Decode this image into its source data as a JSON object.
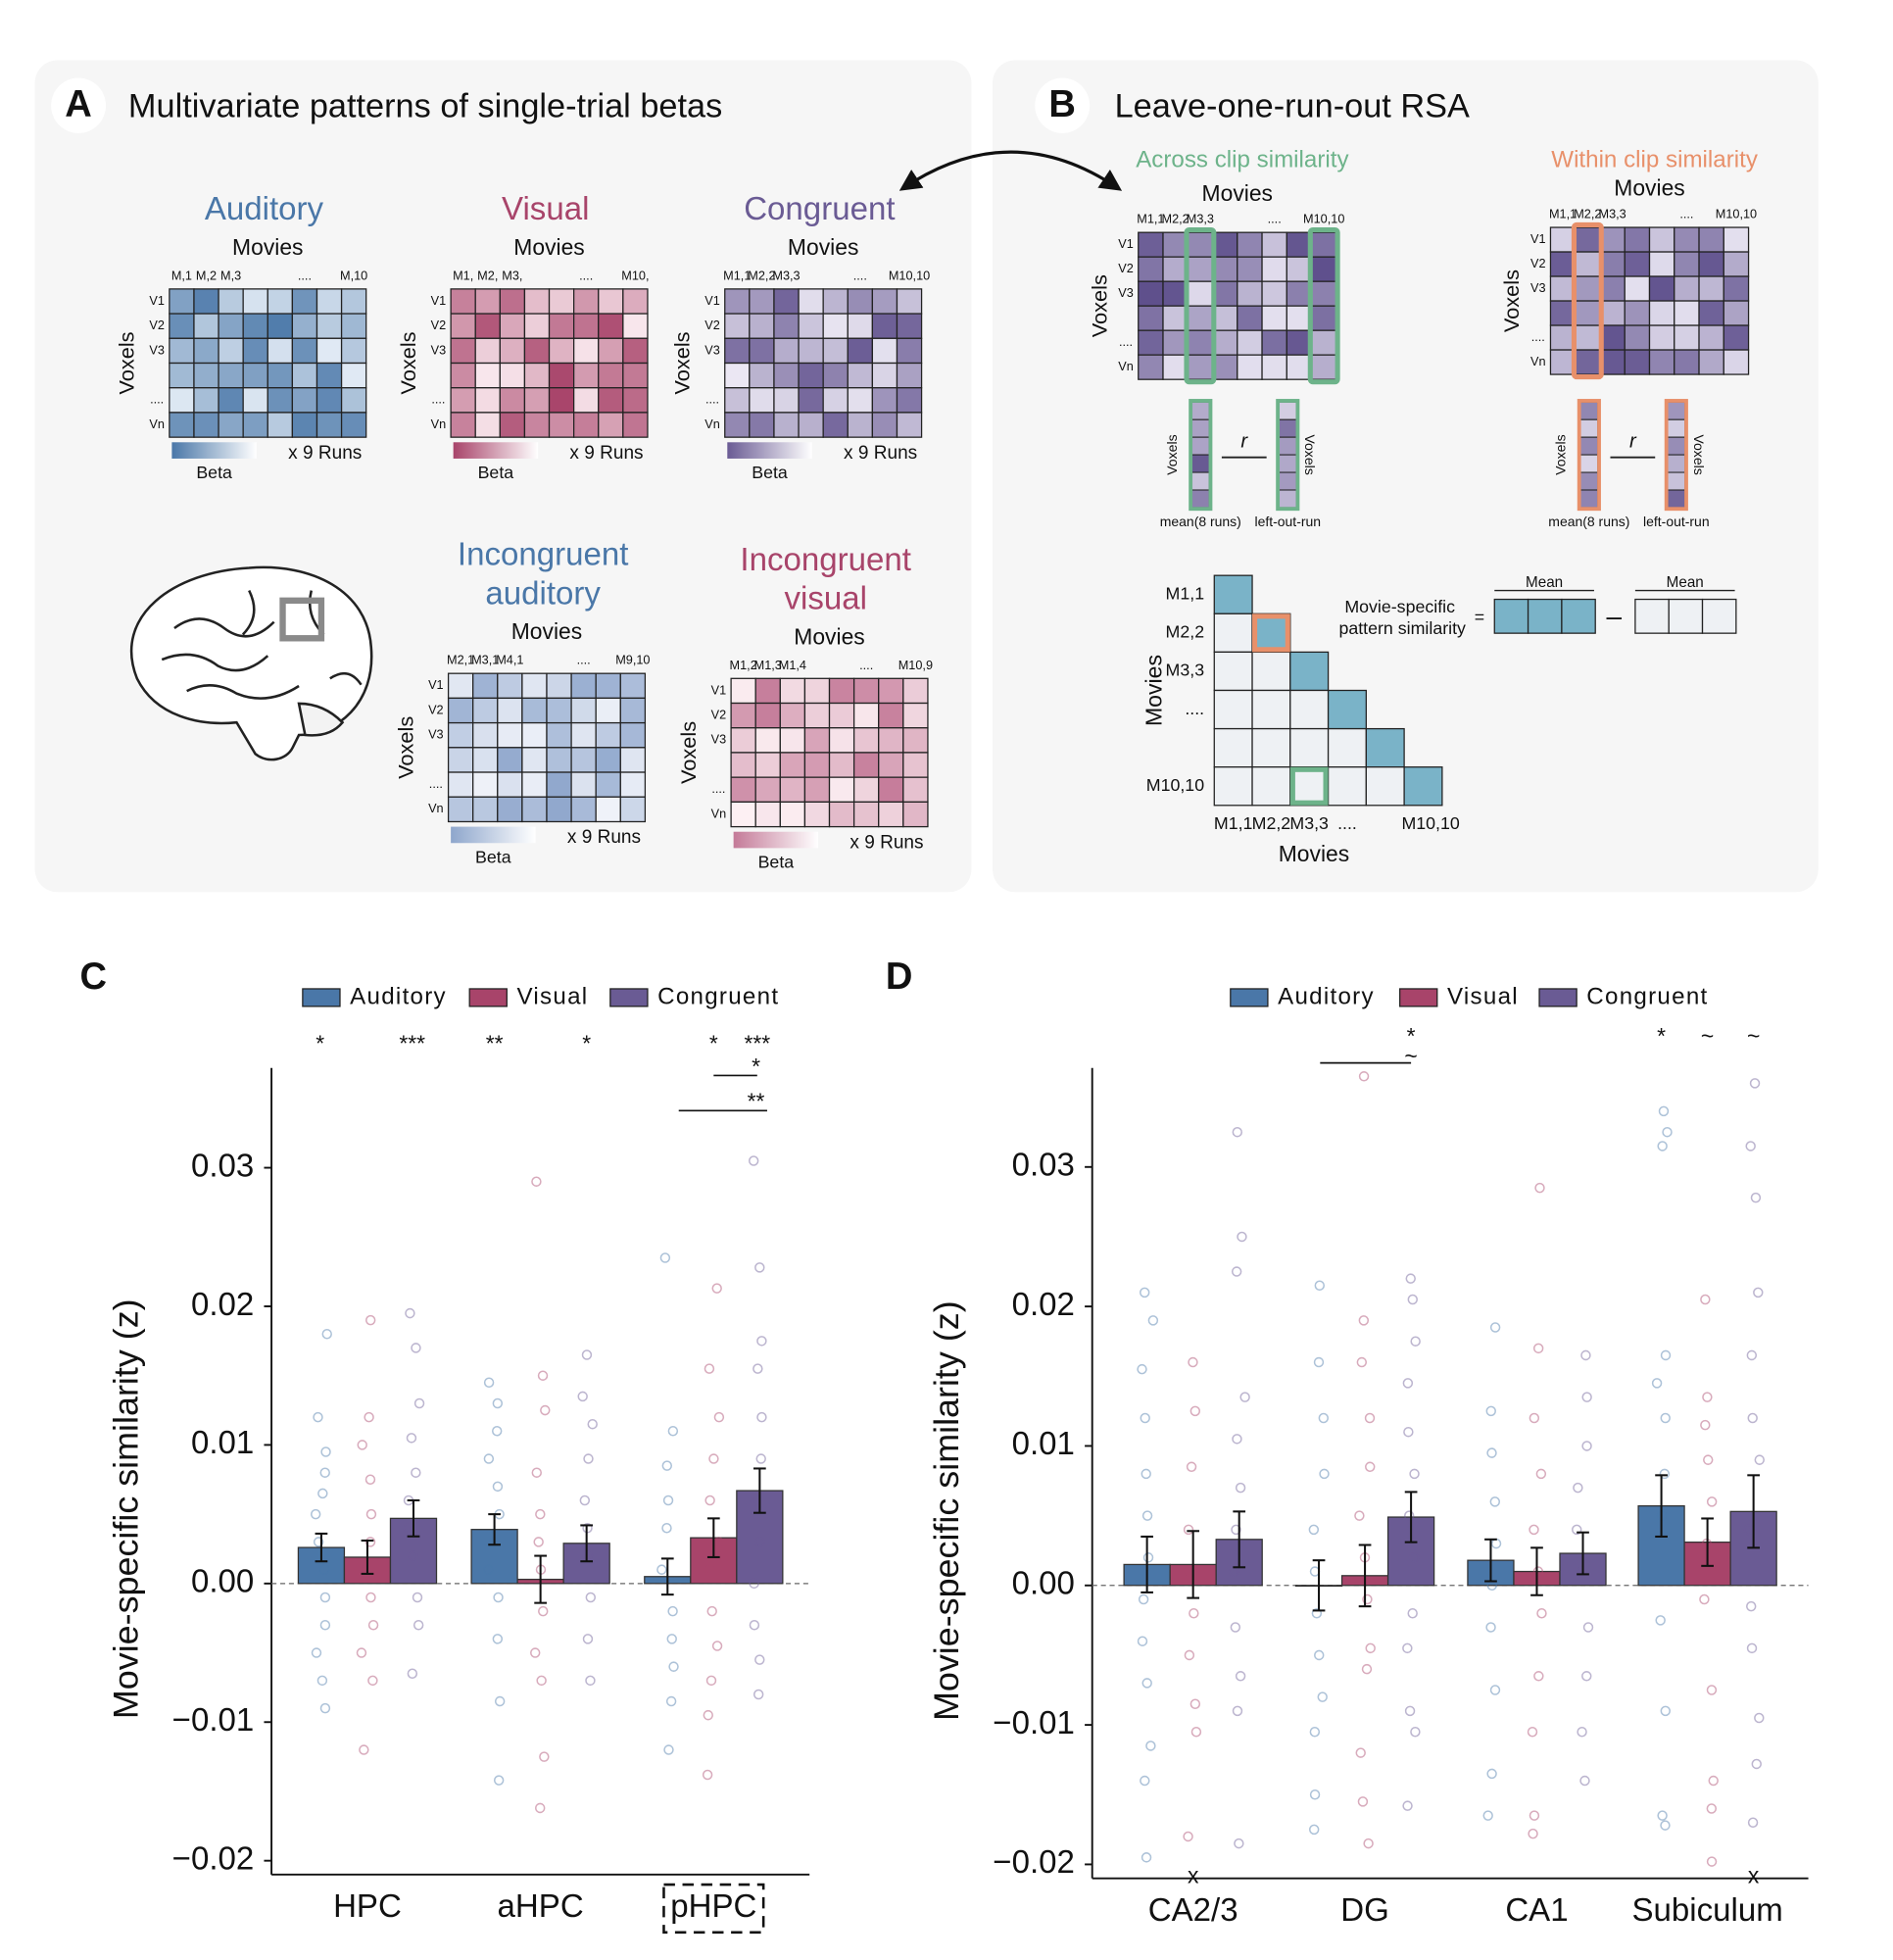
{
  "labels": {
    "movies": "Movies",
    "voxels": "Voxels",
    "runs": "x 9 Runs",
    "beta": "Beta"
  },
  "panel_a": {
    "letter": "A",
    "title": "Multivariate patterns of single-trial betas",
    "rows": [
      "V1",
      "V2",
      "V3",
      "....",
      "Vn"
    ],
    "matrices": [
      {
        "title": [
          "Auditory"
        ],
        "columns": [
          "M,1",
          "M,2",
          "M,3",
          "....",
          "M,10"
        ]
      },
      {
        "title": [
          "Visual"
        ],
        "columns": [
          "M1,",
          "M2,",
          "M3,",
          "....",
          "M10,"
        ]
      },
      {
        "title": [
          "Congruent"
        ],
        "columns": [
          "M1,1",
          "M2,2",
          "M3,3",
          "....",
          "M10,10"
        ]
      },
      {
        "title": [
          "Incongruent",
          "auditory"
        ],
        "columns": [
          "M2,1",
          "M3,1",
          "M4,1",
          "....",
          "M9,10"
        ]
      },
      {
        "title": [
          "Incongruent",
          "visual"
        ],
        "columns": [
          "M1,2",
          "M1,3",
          "M1,4",
          "....",
          "M10,9"
        ]
      }
    ]
  },
  "panel_b": {
    "letter": "B",
    "title": "Leave-one-run-out RSA",
    "across": "Across clip similarity",
    "within": "Within clip similarity",
    "rows": [
      "V1",
      "V2",
      "V3",
      "....",
      "Vn"
    ],
    "columns_across": [
      "M1,1",
      "M2,2",
      "M3,3",
      "....",
      "M10,10"
    ],
    "columns_within": [
      "M1,1",
      "M2,2",
      "M3,3",
      "....",
      "M10,10"
    ],
    "vector_labels": [
      "mean(8 runs)",
      "left-out-run"
    ],
    "r": "r",
    "rsa_labels": [
      "M1,1",
      "M2,2",
      "M3,3",
      "....",
      "M10,10"
    ],
    "formula": [
      "Movie-specific",
      "pattern similarity"
    ],
    "equals": "=",
    "mean": "Mean",
    "minus": "–"
  },
  "chart_data": [
    {
      "type": "bar",
      "letter": "C",
      "ylabel": "Movie-specific similarity (z)",
      "categories": [
        "HPC",
        "aHPC",
        "pHPC"
      ],
      "ylim": [
        -0.021,
        0.0372
      ],
      "yticks": [
        {
          "value": -0.02,
          "label": "−0.02"
        },
        {
          "value": -0.01,
          "label": "−0.01"
        },
        {
          "value": 0,
          "label": "0.00"
        },
        0.01,
        0.02,
        0.03
      ],
      "annotations": [
        "*",
        "***",
        "**",
        "*",
        "*",
        "***",
        "*",
        "**"
      ],
      "series": [
        {
          "name": "Auditory",
          "color": "#4a77a8",
          "values": [
            0.0026,
            0.0039,
            0.0005
          ],
          "errors": [
            0.001,
            0.0011,
            0.0013
          ],
          "points": [
            [
              0.018,
              0.012,
              0.0095,
              0.008,
              0.0065,
              0.005,
              0.003,
              0.001,
              -0.001,
              -0.003,
              -0.005,
              -0.007,
              -0.009
            ],
            [
              0.0145,
              0.013,
              0.011,
              0.009,
              0.007,
              0.005,
              0.003,
              0.001,
              -0.001,
              -0.004,
              -0.0085,
              -0.0142
            ],
            [
              0.0235,
              0.011,
              0.0085,
              0.006,
              0.004,
              0.001,
              -0.002,
              -0.004,
              -0.006,
              -0.0085,
              -0.012
            ]
          ]
        },
        {
          "name": "Visual",
          "color": "#a8446a",
          "values": [
            0.0019,
            0.0003,
            0.0033
          ],
          "errors": [
            0.0012,
            0.0017,
            0.0014
          ],
          "points": [
            [
              0.019,
              0.012,
              0.01,
              0.0075,
              0.005,
              0.003,
              0.001,
              -0.001,
              -0.003,
              -0.005,
              -0.007,
              -0.012
            ],
            [
              0.029,
              0.015,
              0.0125,
              0.008,
              0.005,
              0.003,
              0.001,
              -0.002,
              -0.005,
              -0.007,
              -0.0125,
              -0.0162
            ],
            [
              0.0213,
              0.0155,
              0.012,
              0.009,
              0.006,
              0.003,
              0.001,
              -0.002,
              -0.0045,
              -0.007,
              -0.0095,
              -0.0138
            ]
          ]
        },
        {
          "name": "Congruent",
          "color": "#6a5b94",
          "values": [
            0.0047,
            0.0029,
            0.0067
          ],
          "errors": [
            0.0013,
            0.0013,
            0.0016
          ],
          "points": [
            [
              0.0195,
              0.017,
              0.013,
              0.0105,
              0.008,
              0.006,
              0.004,
              0.002,
              -0.001,
              -0.003,
              -0.0065
            ],
            [
              0.0165,
              0.0135,
              0.0115,
              0.009,
              0.006,
              0.004,
              0.002,
              -0.001,
              -0.004,
              -0.007
            ],
            [
              0.0305,
              0.0228,
              0.0175,
              0.0155,
              0.012,
              0.009,
              0.006,
              0.003,
              0.0,
              -0.003,
              -0.0055,
              -0.008
            ]
          ]
        }
      ]
    },
    {
      "type": "bar",
      "letter": "D",
      "ylabel": "Movie-specific similarity (z)",
      "categories": [
        "CA2/3",
        "DG",
        "CA1",
        "Subiculum"
      ],
      "ylim": [
        -0.021,
        0.0371
      ],
      "yticks": [
        {
          "value": -0.02,
          "label": "−0.02"
        },
        {
          "value": -0.01,
          "label": "−0.01"
        },
        {
          "value": 0,
          "label": "0.00"
        },
        0.01,
        0.02,
        0.03
      ],
      "annotations": [
        "*",
        "~",
        "*",
        "~",
        "~",
        "x",
        "x"
      ],
      "series": [
        {
          "name": "Auditory",
          "color": "#4a77a8",
          "values": [
            0.0015,
            0.0,
            0.0018,
            0.0057
          ],
          "errors": [
            0.002,
            0.0018,
            0.0015,
            0.0022
          ],
          "points": [
            [
              0.021,
              0.019,
              0.0155,
              0.012,
              0.008,
              0.005,
              0.002,
              -0.001,
              -0.004,
              -0.007,
              -0.0115,
              -0.014,
              -0.0195
            ],
            [
              0.0215,
              0.016,
              0.012,
              0.008,
              0.004,
              0.001,
              -0.002,
              -0.005,
              -0.008,
              -0.0105,
              -0.015,
              -0.0175
            ],
            [
              0.0185,
              0.0125,
              0.0095,
              0.006,
              0.003,
              0.0,
              -0.003,
              -0.0075,
              -0.0135,
              -0.0165
            ],
            [
              0.034,
              0.0325,
              0.0315,
              0.0165,
              0.0145,
              0.012,
              0.008,
              0.005,
              -0.0025,
              -0.009,
              -0.0165,
              -0.0172
            ]
          ]
        },
        {
          "name": "Visual",
          "color": "#a8446a",
          "values": [
            0.0015,
            0.0007,
            0.001,
            0.0031
          ],
          "errors": [
            0.0024,
            0.0022,
            0.0017,
            0.0017
          ],
          "points": [
            [
              0.016,
              0.0125,
              0.0085,
              0.004,
              0.001,
              -0.002,
              -0.005,
              -0.0085,
              -0.0105,
              -0.018
            ],
            [
              0.0365,
              0.019,
              0.016,
              0.012,
              0.0085,
              0.005,
              0.002,
              -0.001,
              -0.0045,
              -0.006,
              -0.012,
              -0.0155,
              -0.0185
            ],
            [
              0.0285,
              0.017,
              0.012,
              0.008,
              0.004,
              0.001,
              -0.002,
              -0.0065,
              -0.0105,
              -0.0165,
              -0.0178
            ],
            [
              0.0205,
              0.0135,
              0.0115,
              0.009,
              0.006,
              0.003,
              -0.001,
              -0.0075,
              -0.014,
              -0.016,
              -0.0198
            ]
          ]
        },
        {
          "name": "Congruent",
          "color": "#6a5b94",
          "values": [
            0.0033,
            0.0049,
            0.0023,
            0.0053
          ],
          "errors": [
            0.002,
            0.0018,
            0.0015,
            0.0026
          ],
          "points": [
            [
              0.0325,
              0.025,
              0.0225,
              0.0135,
              0.0105,
              0.007,
              0.004,
              0.001,
              -0.003,
              -0.0065,
              -0.009,
              -0.0185
            ],
            [
              0.022,
              0.0205,
              0.0175,
              0.0145,
              0.011,
              0.008,
              0.005,
              0.002,
              -0.002,
              -0.0045,
              -0.009,
              -0.0105,
              -0.0158
            ],
            [
              0.0165,
              0.0135,
              0.01,
              0.007,
              0.004,
              0.001,
              -0.003,
              -0.0065,
              -0.0105,
              -0.014
            ],
            [
              0.036,
              0.0315,
              0.0278,
              0.021,
              0.0165,
              0.012,
              0.009,
              0.004,
              -0.0015,
              -0.0045,
              -0.0095,
              -0.0128,
              -0.017
            ]
          ]
        }
      ]
    }
  ]
}
